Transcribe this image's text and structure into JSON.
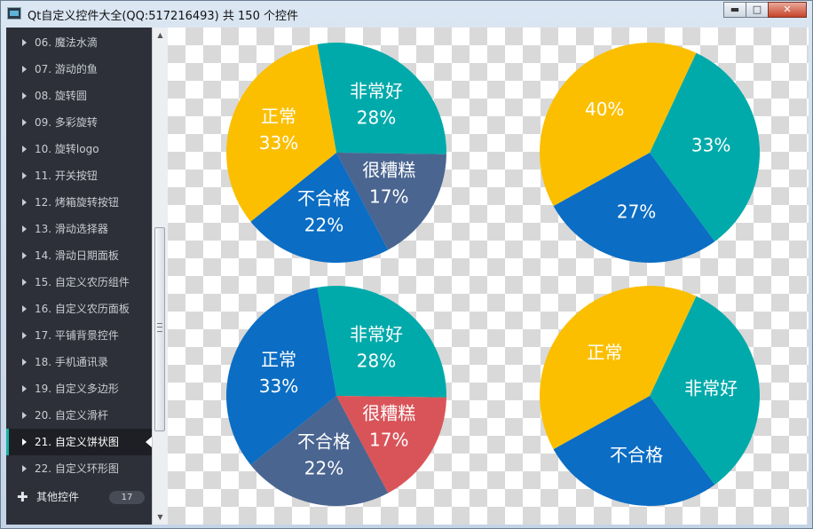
{
  "window": {
    "title": "Qt自定义控件大全(QQ:517216493) 共 150 个控件",
    "min_label": "▬",
    "max_label": "□",
    "close_label": "✕"
  },
  "sidebar": {
    "items": [
      {
        "label": "06. 魔法水滴",
        "active": false
      },
      {
        "label": "07. 游动的鱼",
        "active": false
      },
      {
        "label": "08. 旋转圆",
        "active": false
      },
      {
        "label": "09. 多彩旋转",
        "active": false
      },
      {
        "label": "10. 旋转logo",
        "active": false
      },
      {
        "label": "11. 开关按钮",
        "active": false
      },
      {
        "label": "12. 烤箱旋转按钮",
        "active": false
      },
      {
        "label": "13. 滑动选择器",
        "active": false
      },
      {
        "label": "14. 滑动日期面板",
        "active": false
      },
      {
        "label": "15. 自定义农历组件",
        "active": false
      },
      {
        "label": "16. 自定义农历面板",
        "active": false
      },
      {
        "label": "17. 平铺背景控件",
        "active": false
      },
      {
        "label": "18. 手机通讯录",
        "active": false
      },
      {
        "label": "19. 自定义多边形",
        "active": false
      },
      {
        "label": "20. 自定义滑杆",
        "active": false
      },
      {
        "label": "21. 自定义饼状图",
        "active": true
      },
      {
        "label": "22. 自定义环形图",
        "active": false
      }
    ],
    "group": {
      "icon": "plus-icon",
      "label": "其他控件",
      "count": "17"
    }
  },
  "colors": {
    "yellow": "#fbbf00",
    "teal": "#00aaaa",
    "blue": "#0b6dc4",
    "slate": "#4a6590",
    "red": "#d95459"
  },
  "chart_data": [
    {
      "type": "pie",
      "slices": [
        {
          "label": "非常好",
          "value": 28,
          "percent_label": "28%",
          "color": "#00aaaa"
        },
        {
          "label": "很糟糕",
          "value": 17,
          "percent_label": "17%",
          "color": "#4a6590"
        },
        {
          "label": "不合格",
          "value": 22,
          "percent_label": "22%",
          "color": "#0b6dc4"
        },
        {
          "label": "正常",
          "value": 33,
          "percent_label": "33%",
          "color": "#fbbf00"
        }
      ]
    },
    {
      "type": "pie",
      "slices": [
        {
          "label": "",
          "value": 33,
          "percent_label": "33%",
          "color": "#00aaaa"
        },
        {
          "label": "",
          "value": 27,
          "percent_label": "27%",
          "color": "#0b6dc4"
        },
        {
          "label": "",
          "value": 40,
          "percent_label": "40%",
          "color": "#fbbf00"
        }
      ]
    },
    {
      "type": "pie",
      "slices": [
        {
          "label": "非常好",
          "value": 28,
          "percent_label": "28%",
          "color": "#00aaaa"
        },
        {
          "label": "很糟糕",
          "value": 17,
          "percent_label": "17%",
          "color": "#d95459"
        },
        {
          "label": "不合格",
          "value": 22,
          "percent_label": "22%",
          "color": "#4a6590"
        },
        {
          "label": "正常",
          "value": 33,
          "percent_label": "33%",
          "color": "#0b6dc4"
        }
      ]
    },
    {
      "type": "pie",
      "slices": [
        {
          "label": "非常好",
          "value": 33,
          "percent_label": "",
          "color": "#00aaaa"
        },
        {
          "label": "不合格",
          "value": 27,
          "percent_label": "",
          "color": "#0b6dc4"
        },
        {
          "label": "正常",
          "value": 40,
          "percent_label": "",
          "color": "#fbbf00"
        }
      ]
    }
  ]
}
